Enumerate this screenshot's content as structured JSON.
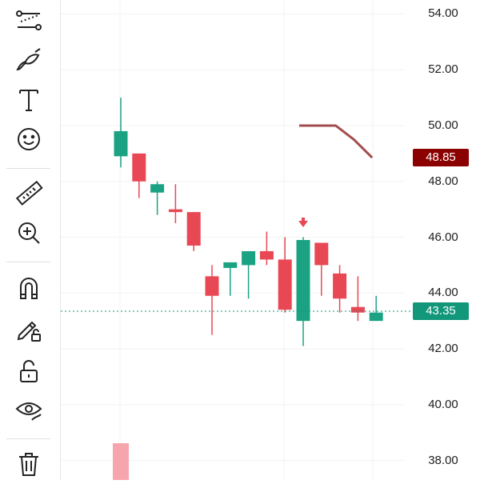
{
  "toolbar": {
    "tools": [
      {
        "icon": "trend-line-icon",
        "name": "trend-line-tool"
      },
      {
        "icon": "brush-icon",
        "name": "brush-tool"
      },
      {
        "icon": "text-icon",
        "name": "text-tool"
      },
      {
        "icon": "emoji-icon",
        "name": "emoji-tool"
      },
      {
        "icon": "ruler-icon",
        "name": "measure-tool"
      },
      {
        "icon": "zoom-in-icon",
        "name": "zoom-tool"
      },
      {
        "icon": "magnet-icon",
        "name": "magnet-tool"
      },
      {
        "icon": "lock-drawing-icon",
        "name": "lock-drawing-tool"
      },
      {
        "icon": "unlock-icon",
        "name": "lock-all-tool"
      },
      {
        "icon": "eye-icon",
        "name": "hide-drawings-tool"
      },
      {
        "icon": "trash-icon",
        "name": "remove-drawings-tool"
      }
    ]
  },
  "colors": {
    "up": "#1aa283",
    "down": "#e84754",
    "line": "#a24d4d",
    "current_badge": "#12977b",
    "line_badge": "#8b0000",
    "volume": "#f7a5ad"
  },
  "axis": {
    "labels": [
      "54.00",
      "52.00",
      "50.00",
      "48.00",
      "46.00",
      "44.00",
      "42.00",
      "40.00",
      "38.00"
    ],
    "current_price": "43.35",
    "line_price": "48.85"
  },
  "chart_data": {
    "type": "candlestick",
    "ylim": [
      37.3,
      54.5
    ],
    "candles": [
      {
        "o": 48.9,
        "h": 51.0,
        "l": 48.5,
        "c": 49.8
      },
      {
        "o": 49.0,
        "h": 49.0,
        "l": 47.4,
        "c": 48.0
      },
      {
        "o": 47.6,
        "h": 48.0,
        "l": 46.8,
        "c": 47.9
      },
      {
        "o": 47.0,
        "h": 47.9,
        "l": 46.5,
        "c": 46.9
      },
      {
        "o": 46.9,
        "h": 46.9,
        "l": 45.5,
        "c": 45.7
      },
      {
        "o": 44.6,
        "h": 45.0,
        "l": 42.5,
        "c": 43.9
      },
      {
        "o": 44.9,
        "h": 45.1,
        "l": 43.9,
        "c": 45.1
      },
      {
        "o": 45.0,
        "h": 45.5,
        "l": 43.8,
        "c": 45.5
      },
      {
        "o": 45.5,
        "h": 46.2,
        "l": 45.0,
        "c": 45.2
      },
      {
        "o": 45.2,
        "h": 46.0,
        "l": 43.3,
        "c": 43.4
      },
      {
        "o": 43.0,
        "h": 46.0,
        "l": 42.1,
        "c": 45.9
      },
      {
        "o": 45.8,
        "h": 45.8,
        "l": 43.9,
        "c": 45.0
      },
      {
        "o": 44.7,
        "h": 45.0,
        "l": 43.3,
        "c": 43.8
      },
      {
        "o": 43.5,
        "h": 44.6,
        "l": 43.0,
        "c": 43.3
      },
      {
        "o": 43.0,
        "h": 43.9,
        "l": 43.0,
        "c": 43.3
      }
    ],
    "line_series": [
      50.0,
      50.0,
      50.0,
      49.5,
      48.85
    ],
    "current_price": 43.35
  }
}
